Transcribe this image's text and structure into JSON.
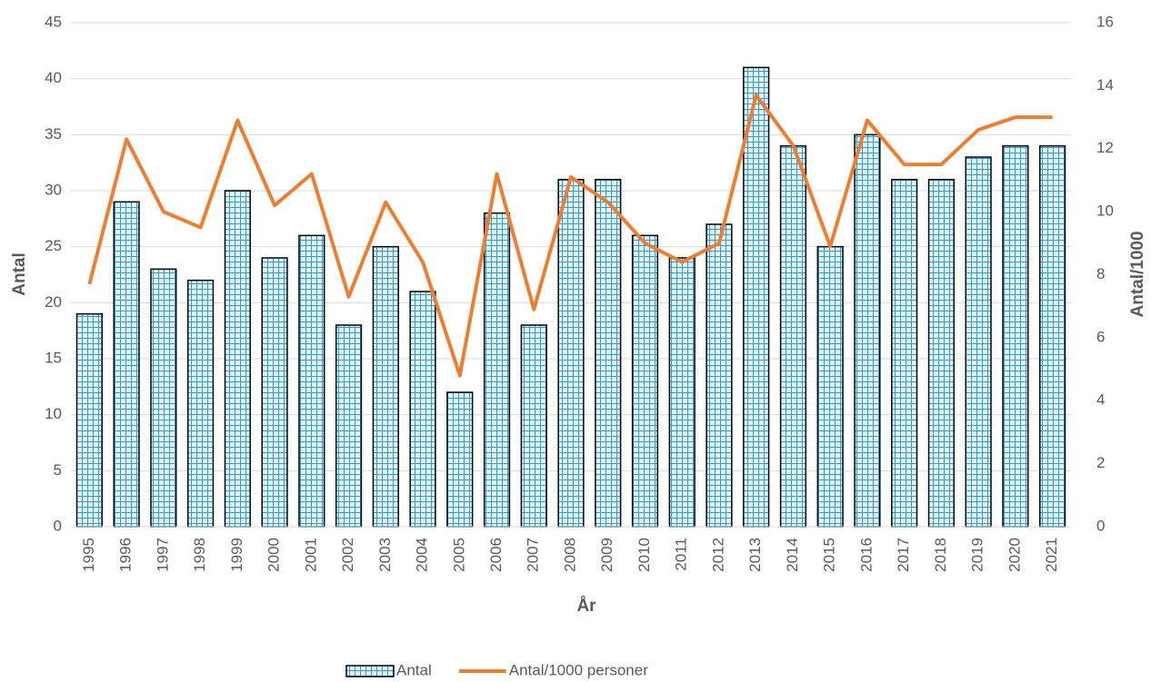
{
  "chart_data": {
    "type": "bar_line",
    "categories": [
      "1995",
      "1996",
      "1997",
      "1998",
      "1999",
      "2000",
      "2001",
      "2002",
      "2003",
      "2004",
      "2005",
      "2006",
      "2007",
      "2008",
      "2009",
      "2010",
      "2011",
      "2012",
      "2013",
      "2014",
      "2015",
      "2016",
      "2017",
      "2018",
      "2019",
      "2020",
      "2021"
    ],
    "series": [
      {
        "name": "Antal",
        "type": "bar",
        "color": "#2c9bd6",
        "values": [
          19,
          29,
          23,
          22,
          30,
          24,
          26,
          18,
          25,
          21,
          12,
          28,
          18,
          31,
          31,
          26,
          24,
          27,
          41,
          34,
          25,
          35,
          31,
          31,
          33,
          34,
          34
        ]
      },
      {
        "name": "Antal/1000 personer",
        "type": "line",
        "axis": "y2",
        "color": "#ed7d31",
        "values": [
          7.7,
          12.3,
          10.0,
          9.5,
          12.9,
          10.2,
          11.2,
          7.3,
          10.3,
          8.4,
          4.8,
          11.2,
          6.9,
          11.1,
          10.3,
          9.0,
          8.4,
          9.0,
          13.7,
          12.1,
          8.9,
          12.9,
          11.5,
          11.5,
          12.6,
          13.0,
          13.0
        ]
      }
    ],
    "x_label": "År",
    "y_label": "Antal",
    "y2_label": "Antal/1000",
    "ylim": [
      0,
      45
    ],
    "yticks": [
      0,
      5,
      10,
      15,
      20,
      25,
      30,
      35,
      40,
      45
    ],
    "y2lim": [
      0,
      16
    ],
    "y2ticks": [
      0,
      2,
      4,
      6,
      8,
      10,
      12,
      14,
      16
    ],
    "grid": true,
    "legend": "bottom"
  }
}
